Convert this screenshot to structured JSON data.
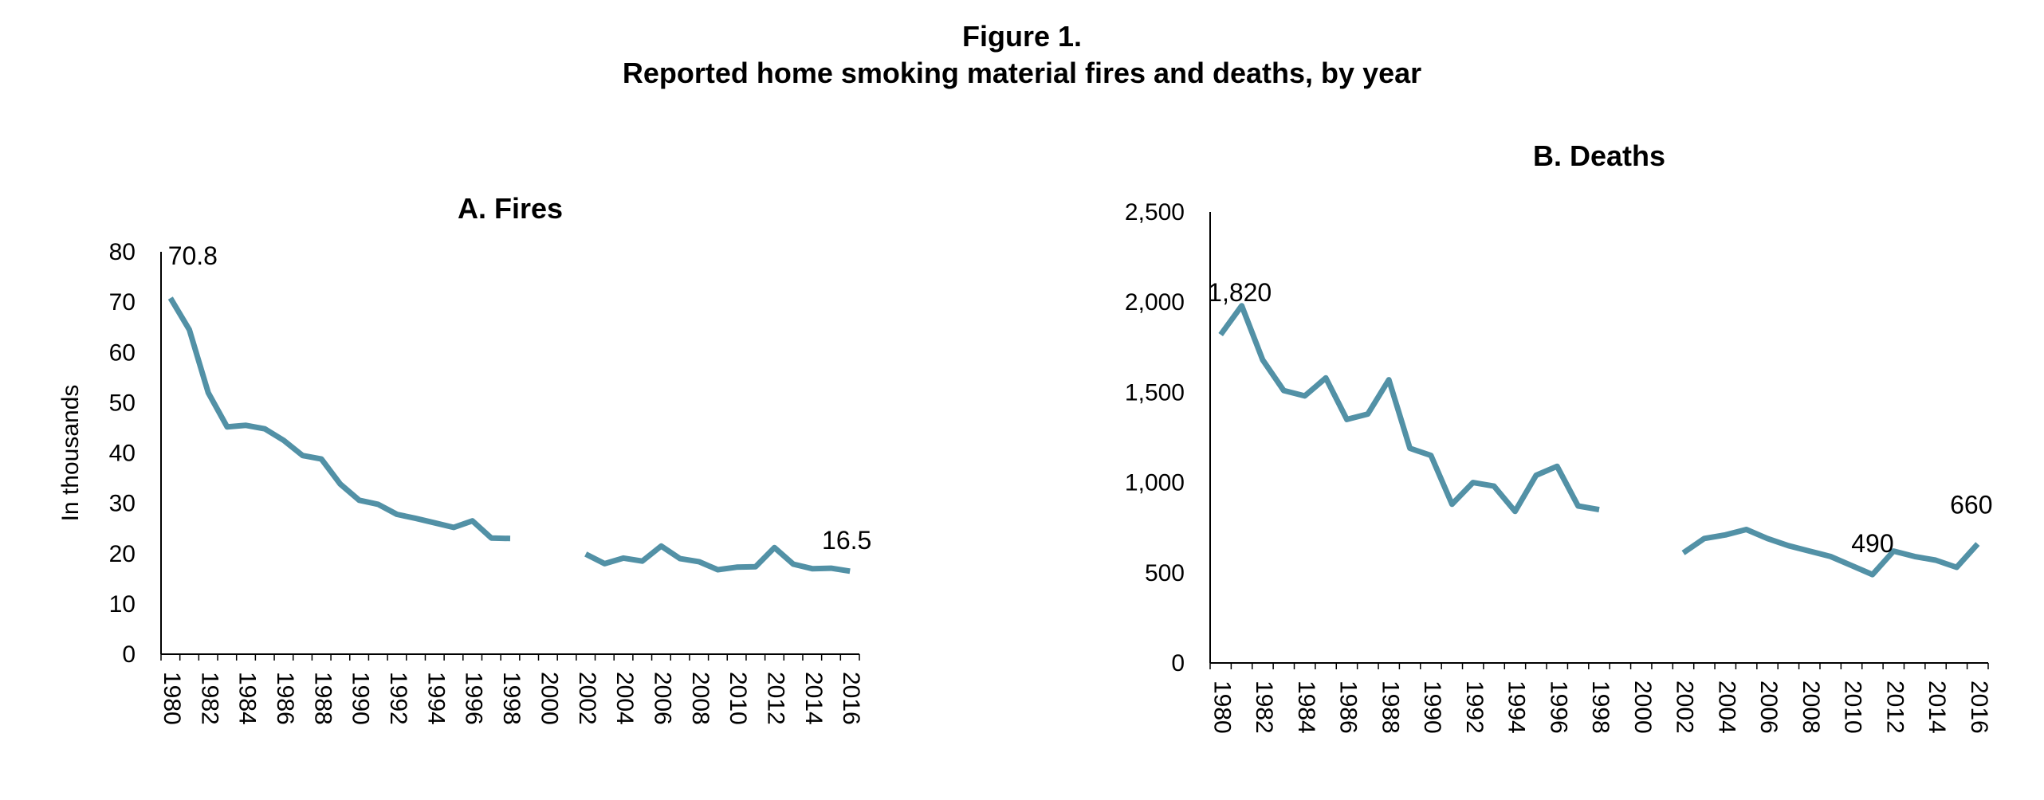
{
  "figure": {
    "title_line1": "Figure 1.",
    "title_line2": "Reported home smoking material fires and deaths, by year"
  },
  "colors": {
    "series": "#5291a6",
    "axis": "#000000"
  },
  "chart_data": [
    {
      "type": "line",
      "title": "A. Fires",
      "ylabel": "In thousands",
      "xlabel": "",
      "ylim": [
        0,
        80
      ],
      "yticks": [
        0,
        10,
        20,
        30,
        40,
        50,
        60,
        70,
        80
      ],
      "ytick_labels": [
        "0",
        "10",
        "20",
        "30",
        "40",
        "50",
        "60",
        "70",
        "80"
      ],
      "x": [
        1980,
        1981,
        1982,
        1983,
        1984,
        1985,
        1986,
        1987,
        1988,
        1989,
        1990,
        1991,
        1992,
        1993,
        1994,
        1995,
        1996,
        1997,
        1998,
        1999,
        2000,
        2001,
        2002,
        2003,
        2004,
        2005,
        2006,
        2007,
        2008,
        2009,
        2010,
        2011,
        2012,
        2013,
        2014,
        2015,
        2016
      ],
      "xtick_labels": [
        "1980",
        "1982",
        "1984",
        "1986",
        "1988",
        "1990",
        "1992",
        "1994",
        "1996",
        "1998",
        "2000",
        "2002",
        "2004",
        "2006",
        "2008",
        "2010",
        "2012",
        "2014",
        "2016"
      ],
      "values": [
        70.8,
        64.5,
        52.0,
        45.2,
        45.5,
        44.8,
        42.5,
        39.5,
        38.8,
        33.8,
        30.6,
        29.8,
        27.8,
        27.0,
        26.1,
        25.2,
        26.5,
        23.1,
        23.0,
        null,
        null,
        null,
        19.9,
        18.0,
        19.1,
        18.5,
        21.5,
        19.0,
        18.4,
        16.8,
        17.3,
        17.4,
        21.2,
        17.9,
        17.0,
        17.1,
        16.5
      ],
      "data_labels": [
        {
          "year": 1980,
          "text": "70.8"
        },
        {
          "year": 2016,
          "text": "16.5"
        }
      ]
    },
    {
      "type": "line",
      "title": "B. Deaths",
      "ylabel": "",
      "xlabel": "",
      "ylim": [
        0,
        2500
      ],
      "yticks": [
        0,
        500,
        1000,
        1500,
        2000,
        2500
      ],
      "ytick_labels": [
        "0",
        "500",
        "1,000",
        "1,500",
        "2,000",
        "2,500"
      ],
      "x": [
        1980,
        1981,
        1982,
        1983,
        1984,
        1985,
        1986,
        1987,
        1988,
        1989,
        1990,
        1991,
        1992,
        1993,
        1994,
        1995,
        1996,
        1997,
        1998,
        1999,
        2000,
        2001,
        2002,
        2003,
        2004,
        2005,
        2006,
        2007,
        2008,
        2009,
        2010,
        2011,
        2012,
        2013,
        2014,
        2015,
        2016
      ],
      "xtick_labels": [
        "1980",
        "1982",
        "1984",
        "1986",
        "1988",
        "1990",
        "1992",
        "1994",
        "1996",
        "1998",
        "2000",
        "2002",
        "2004",
        "2006",
        "2008",
        "2010",
        "2012",
        "2014",
        "2016"
      ],
      "values": [
        1820,
        1980,
        1680,
        1510,
        1480,
        1580,
        1350,
        1380,
        1570,
        1190,
        1150,
        880,
        1000,
        980,
        840,
        1040,
        1090,
        870,
        850,
        null,
        null,
        null,
        610,
        690,
        710,
        740,
        690,
        650,
        620,
        590,
        540,
        490,
        620,
        590,
        570,
        530,
        660
      ],
      "data_labels": [
        {
          "year": 1980,
          "text": "1,820"
        },
        {
          "year": 2011,
          "text": "490"
        },
        {
          "year": 2016,
          "text": "660"
        }
      ]
    }
  ]
}
